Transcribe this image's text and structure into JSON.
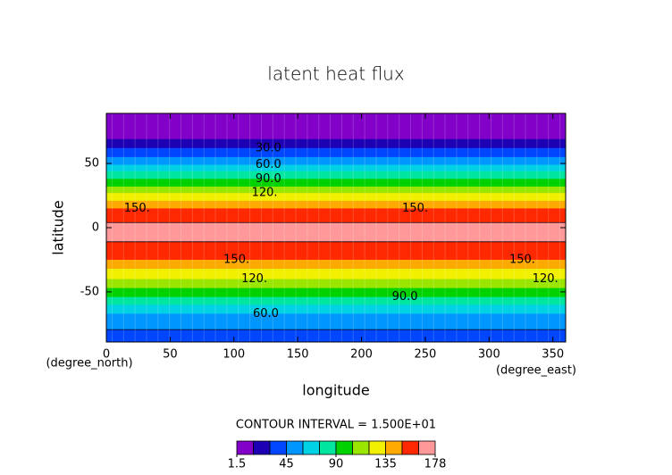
{
  "chart_data": {
    "type": "zonal-contour",
    "title": "latent heat flux",
    "xlabel": "longitude",
    "ylabel": "latitude",
    "xunit": "(degree_east)",
    "yunit": "(degree_north)",
    "xlim": [
      0,
      360
    ],
    "ylim": [
      -89,
      89
    ],
    "xticks": [
      0,
      50,
      100,
      150,
      200,
      250,
      300,
      350
    ],
    "yticks": [
      -50,
      0,
      50
    ],
    "y": [
      88.75,
      80,
      72,
      69,
      65,
      62,
      55,
      49,
      44,
      38,
      32,
      27,
      21,
      15,
      8,
      0,
      -10,
      -18,
      -25,
      -32,
      -40,
      -47,
      -54,
      -60,
      -67,
      -75,
      -82,
      -88.75
    ],
    "values": [
      3,
      6,
      12,
      15,
      22,
      30,
      45,
      60,
      75,
      90,
      105,
      120,
      135,
      150,
      162,
      168,
      166,
      158,
      150,
      135,
      120,
      105,
      90,
      75,
      60,
      50,
      42,
      38
    ],
    "levels": [
      1.5,
      15,
      30,
      45,
      60,
      75,
      90,
      105,
      120,
      135,
      150,
      165,
      178
    ],
    "colors": [
      "#8200c8",
      "#1e00b4",
      "#0046ff",
      "#0096ff",
      "#00d2e6",
      "#00e6a0",
      "#00d200",
      "#9be600",
      "#f0f000",
      "#ffaa00",
      "#ff2800",
      "#ff9999"
    ],
    "contour_labels": [
      {
        "value": 30,
        "label": "30.0",
        "x": 127,
        "y": 62
      },
      {
        "value": 60,
        "label": "60.0",
        "x": 127,
        "y": 49
      },
      {
        "value": 90,
        "label": "90.0",
        "x": 127,
        "y": 38
      },
      {
        "value": 120,
        "label": "120.",
        "x": 124,
        "y": 27
      },
      {
        "value": 150,
        "label": "150.",
        "x": 24,
        "y": 15
      },
      {
        "value": 150,
        "label": "150.",
        "x": 242,
        "y": 15
      },
      {
        "value": 150,
        "label": "150.",
        "x": 102,
        "y": -25
      },
      {
        "value": 150,
        "label": "150.",
        "x": 326,
        "y": -25
      },
      {
        "value": 120,
        "label": "120.",
        "x": 116,
        "y": -40
      },
      {
        "value": 120,
        "label": "120.",
        "x": 344,
        "y": -40
      },
      {
        "value": 90,
        "label": "90.0",
        "x": 234,
        "y": -54
      },
      {
        "value": 60,
        "label": "60.0",
        "x": 125,
        "y": -67
      }
    ],
    "contour_interval_text": "CONTOUR INTERVAL = 1.500E+01",
    "colorbar_ticks": [
      1.5,
      45,
      90,
      135,
      178
    ]
  }
}
